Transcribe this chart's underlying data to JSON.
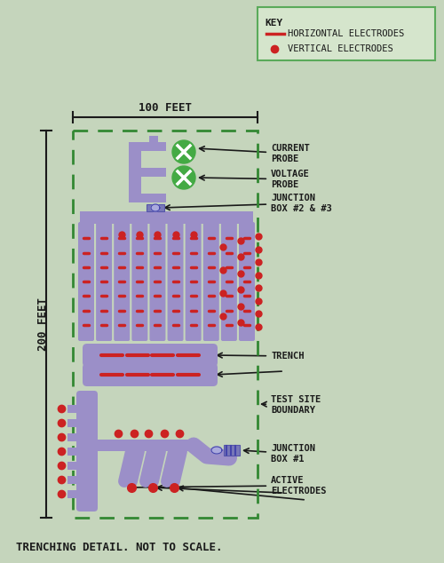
{
  "bg_color": "#c5d5bc",
  "purple": "#9b8fc8",
  "purple_dark": "#7b6fa8",
  "red": "#cc2222",
  "green_circle": "#44aa44",
  "green_border": "#5aaa5a",
  "dashed_border_color": "#338833",
  "text_color": "#1a1a1a",
  "key_bg": "#d5e5cc",
  "title_text": "TRENCHING DETAIL. NOT TO SCALE.",
  "label_current": "CURRENT\nPROBE",
  "label_voltage": "VOLTAGE\nPROBE",
  "label_junction23": "JUNCTION\nBOX #2 & #3",
  "label_trench": "TRENCH",
  "label_boundary": "TEST SITE\nBOUNDARY",
  "label_junction1": "JUNCTION\nBOX #1",
  "label_active": "ACTIVE\nELECTRODES",
  "label_100ft": "100 FEET",
  "label_200ft": "200 FEET",
  "key_title": "KEY",
  "key_horiz": "HORIZONTAL ELECTRODES",
  "key_vert": "VERTICAL ELECTRODES",
  "figsize": [
    5.0,
    6.34
  ],
  "dpi": 100
}
